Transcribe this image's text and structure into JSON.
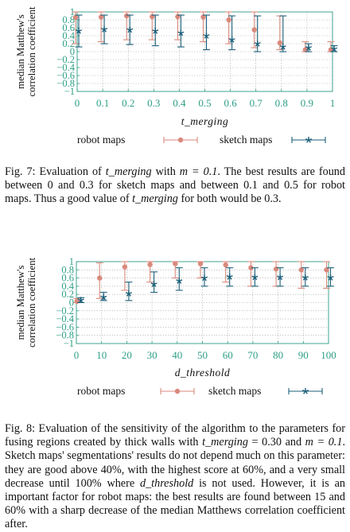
{
  "figures": [
    {
      "chart_data": {
        "type": "scatter",
        "ylabel": "median Matthew's correlation coefficient",
        "xlabel": "t_merging",
        "ylim": [
          -1,
          1
        ],
        "yticks": [
          "1",
          "0.8",
          "0.6",
          "0.4",
          "0.2",
          "0",
          "−0.2",
          "−0.4",
          "−0.6",
          "−0.8",
          "−1"
        ],
        "xticks": [
          "0",
          "0.1",
          "0.2",
          "0.3",
          "0.4",
          "0.5",
          "0.6",
          "0.7",
          "0.8",
          "0.9",
          "1"
        ],
        "grid": true,
        "legend_placement": "bottom",
        "series": [
          {
            "name": "robot maps",
            "color": "#d98a7c",
            "marker": "circle",
            "x": [
              0,
              0.1,
              0.2,
              0.3,
              0.4,
              0.5,
              0.6,
              0.7,
              0.8,
              0.9,
              1
            ],
            "median": [
              0.86,
              0.87,
              0.9,
              0.88,
              0.88,
              0.87,
              0.8,
              0.55,
              0.22,
              0.05,
              0.05
            ],
            "low": [
              0.2,
              0.25,
              0.3,
              0.3,
              0.3,
              0.25,
              0.2,
              0.1,
              0.05,
              0.0,
              0.0
            ],
            "high": [
              1,
              1,
              1,
              1,
              1,
              1,
              1,
              1,
              0.9,
              0.25,
              0.25
            ]
          },
          {
            "name": "sketch maps",
            "color": "#1b5f79",
            "marker": "star",
            "x": [
              0,
              0.1,
              0.2,
              0.3,
              0.4,
              0.5,
              0.6,
              0.7,
              0.8,
              0.9,
              1
            ],
            "median": [
              0.52,
              0.56,
              0.55,
              0.52,
              0.47,
              0.4,
              0.3,
              0.2,
              0.12,
              0.1,
              0.07
            ],
            "low": [
              0.12,
              0.2,
              0.18,
              0.15,
              0.12,
              0.05,
              0.05,
              0.0,
              0.0,
              0.0,
              0.0
            ],
            "high": [
              0.92,
              0.92,
              0.92,
              0.92,
              0.92,
              0.92,
              0.9,
              0.9,
              0.9,
              0.2,
              0.15
            ]
          }
        ]
      }
    },
    {
      "chart_data": {
        "type": "scatter",
        "ylabel": "median Matthew's correlation coefficient",
        "xlabel": "d_threshold",
        "ylim": [
          -1,
          1
        ],
        "yticks": [
          "1",
          "0.8",
          "0.6",
          "0.4",
          "0.2",
          "0",
          "−0.2",
          "−0.4",
          "−0.6",
          "−0.8",
          "−1"
        ],
        "xticks": [
          "0",
          "10",
          "20",
          "30",
          "40",
          "50",
          "60",
          "70",
          "80",
          "90",
          "100"
        ],
        "grid": true,
        "legend_placement": "bottom",
        "series": [
          {
            "name": "robot maps",
            "color": "#d98a7c",
            "marker": "circle",
            "x": [
              1,
              10,
              20,
              30,
              40,
              50,
              60,
              70,
              80,
              90,
              100
            ],
            "median": [
              0.03,
              0.6,
              0.87,
              0.93,
              0.95,
              0.95,
              0.92,
              0.85,
              0.82,
              0.8,
              0.8
            ],
            "low": [
              0.0,
              0.1,
              0.3,
              0.5,
              0.6,
              0.6,
              0.5,
              0.4,
              0.4,
              0.35,
              0.35
            ],
            "high": [
              0.1,
              0.97,
              1,
              1,
              1,
              1,
              1,
              1,
              1,
              1,
              1
            ]
          },
          {
            "name": "sketch maps",
            "color": "#1b5f79",
            "marker": "star",
            "x": [
              1,
              10,
              20,
              30,
              40,
              50,
              60,
              70,
              80,
              90,
              100
            ],
            "median": [
              0.06,
              0.13,
              0.22,
              0.45,
              0.53,
              0.6,
              0.63,
              0.62,
              0.62,
              0.61,
              0.61
            ],
            "low": [
              0.0,
              0.05,
              0.05,
              0.25,
              0.3,
              0.4,
              0.4,
              0.4,
              0.4,
              0.4,
              0.4
            ],
            "high": [
              0.12,
              0.25,
              0.5,
              0.75,
              0.85,
              0.85,
              0.85,
              0.85,
              0.85,
              0.85,
              0.85
            ]
          }
        ]
      }
    }
  ],
  "captions": {
    "fig7": {
      "label": "Fig. 7: Evaluation of",
      "var1": "t_merging",
      "mid1": " with",
      "math1": "m = 0.1",
      "mid2": ". The best results are found between 0 and 0.3 for sketch maps and between 0.1 and 0.5 for robot maps. Thus a good value of",
      "var2": "t_merging",
      "end": " for both would be 0.3."
    },
    "fig8": {
      "label": "Fig. 8: Evaluation of the sensitivity of the algorithm to the parameters for fusing regions created by thick walls with",
      "var1": "t_merging",
      "mid1": " = 0.30 and",
      "math1": "m = 0.1",
      "mid2": ". Sketch maps' segmentations' results do not depend much on this parameter: they are good above 40%, with the highest score at 60%, and a very small decrease until 100% where",
      "var2": "d_threshold",
      "end": " is not used. However, it is an important factor for robot maps: the best results are found between 15 and 60% with a sharp decrease of the median Matthews correlation coefficient after."
    }
  }
}
